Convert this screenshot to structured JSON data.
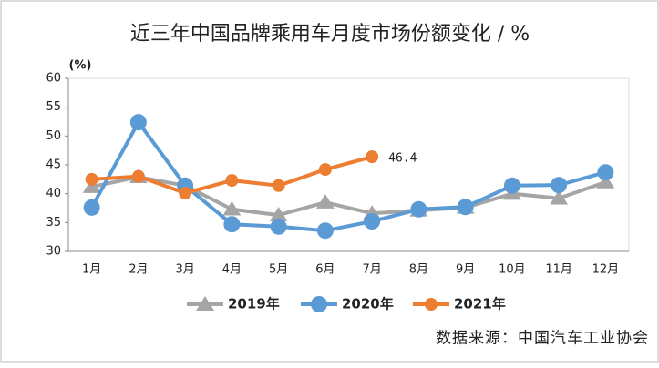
{
  "chart_data": {
    "type": "line",
    "title": "近三年中国品牌乘用车月度市场份额变化 / %",
    "y_label": "(%)",
    "source": "数据来源：中国汽车工业协会",
    "categories": [
      "1月",
      "2月",
      "3月",
      "4月",
      "5月",
      "6月",
      "7月",
      "8月",
      "9月",
      "10月",
      "11月",
      "12月"
    ],
    "series": [
      {
        "name": "2019年",
        "color": "#a5a5a5",
        "marker": "triangle",
        "values": [
          41.2,
          42.9,
          41.4,
          37.3,
          36.3,
          38.5,
          36.6,
          37.1,
          37.6,
          40.0,
          39.2,
          42.0
        ]
      },
      {
        "name": "2020年",
        "color": "#5b9bd5",
        "marker": "circle",
        "values": [
          37.6,
          52.4,
          41.4,
          34.7,
          34.3,
          33.6,
          35.2,
          37.3,
          37.7,
          41.4,
          41.5,
          43.7
        ]
      },
      {
        "name": "2021年",
        "color": "#ed7d31",
        "marker": "circle",
        "values": [
          42.5,
          43.0,
          40.1,
          42.3,
          41.4,
          44.2,
          46.4,
          null,
          null,
          null,
          null,
          null
        ]
      }
    ],
    "ylim": [
      30,
      60
    ],
    "yticks": [
      30,
      35,
      40,
      45,
      50,
      55,
      60
    ],
    "grid": false
  }
}
